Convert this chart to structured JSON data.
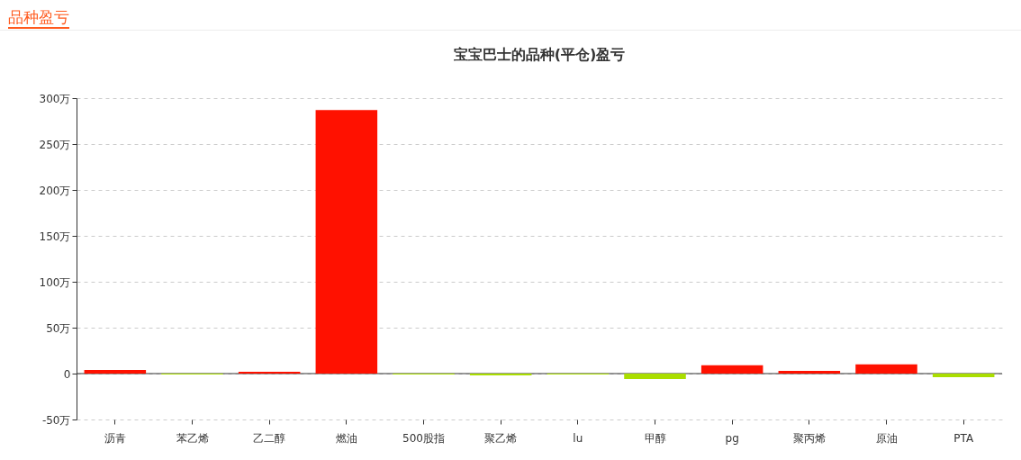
{
  "chart_data": {
    "type": "bar",
    "title": "宝宝巴士的品种(平仓)盈亏",
    "annotations": [
      "品种盈亏"
    ],
    "categories": [
      "沥青",
      "苯乙烯",
      "乙二醇",
      "燃油",
      "500股指",
      "聚乙烯",
      "lu",
      "甲醇",
      "pg",
      "聚丙烯",
      "原油",
      "PTA"
    ],
    "values": [
      4,
      -1,
      2,
      287,
      -1,
      -2,
      -1,
      -6,
      9,
      3,
      10,
      -4
    ],
    "colors": [
      "#ff1100",
      "#aade00",
      "#ff1100",
      "#ff1100",
      "#aade00",
      "#aade00",
      "#aade00",
      "#aade00",
      "#ff1100",
      "#ff1100",
      "#ff1100",
      "#aade00"
    ],
    "ylim": [
      -50,
      300
    ],
    "yticks": [
      {
        "value": -50,
        "label": "-50万"
      },
      {
        "value": 0,
        "label": "0"
      },
      {
        "value": 50,
        "label": "50万"
      },
      {
        "value": 100,
        "label": "100万"
      },
      {
        "value": 150,
        "label": "150万"
      },
      {
        "value": 200,
        "label": "200万"
      },
      {
        "value": 250,
        "label": "250万"
      },
      {
        "value": 300,
        "label": "300万"
      }
    ],
    "grid": "y"
  }
}
